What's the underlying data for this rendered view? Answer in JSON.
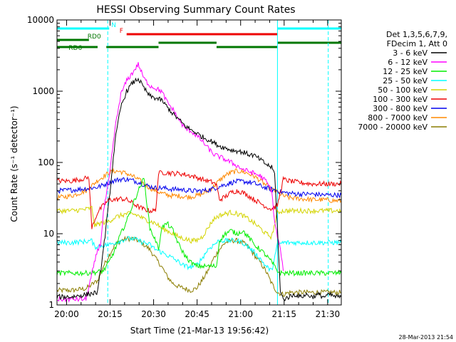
{
  "chart_data": {
    "type": "line",
    "title": "HESSI Observing Summary Count Rates",
    "xlabel": "Start Time (21-Mar-13 19:56:42)",
    "ylabel": "Count Rate (s⁻¹ detector⁻¹)",
    "y_scale": "log",
    "ylim": [
      1,
      10000
    ],
    "xlim_minutes_after_start": [
      0,
      98
    ],
    "x_tick_labels": [
      "20:00",
      "20:15",
      "20:30",
      "20:45",
      "21:00",
      "21:15",
      "21:30"
    ],
    "y_tick_labels": [
      "1",
      "10",
      "100",
      "1000",
      "10000"
    ],
    "footer_timestamp": "28-Mar-2013 21:54",
    "legend": {
      "placement": "top-right",
      "header_lines": [
        "Det 1,3,5,6,7,9,",
        "FDecim 1, Att 0"
      ],
      "entries": [
        {
          "label": "3 - 6 keV",
          "color": "#000000"
        },
        {
          "label": "6 - 12 keV",
          "color": "#ff00ff"
        },
        {
          "label": "12 - 25 keV",
          "color": "#00ee00"
        },
        {
          "label": "25 - 50 keV",
          "color": "#00ffff"
        },
        {
          "label": "50 - 100 keV",
          "color": "#d4d400"
        },
        {
          "label": "100 - 300 keV",
          "color": "#ee0000"
        },
        {
          "label": "300 - 800 keV",
          "color": "#0000ee"
        },
        {
          "label": "800 - 7000 keV",
          "color": "#ff8800"
        },
        {
          "label": "7000 - 20000 keV",
          "color": "#8b7d00"
        }
      ]
    },
    "flag_bars": [
      {
        "label": "N",
        "color": "#00ffff",
        "segments": [
          [
            0,
            18
          ],
          [
            76,
            98
          ]
        ]
      },
      {
        "label": "F",
        "color": "#ee0000",
        "segments": [
          [
            24,
            76
          ]
        ]
      },
      {
        "label": "RD0",
        "color": "#007700",
        "segments": [
          [
            0,
            11
          ]
        ]
      },
      {
        "label": "",
        "color": "#007700",
        "segments": [
          [
            35,
            55
          ],
          [
            76,
            98
          ]
        ]
      },
      {
        "label": "RD6",
        "color": "#007700",
        "segments": [
          [
            0,
            14
          ],
          [
            17,
            35
          ],
          [
            55,
            76
          ]
        ]
      }
    ],
    "vertical_markers": [
      {
        "x": 0,
        "color": "#00ffff",
        "style": "solid"
      },
      {
        "x": 17.5,
        "color": "#00ffff",
        "style": "dashed"
      },
      {
        "x": 76,
        "color": "#00ffff",
        "style": "solid"
      },
      {
        "x": 93.5,
        "color": "#00ffff",
        "style": "dashed"
      }
    ],
    "series": [
      {
        "name": "3 - 6 keV",
        "color": "#000000",
        "x": [
          0,
          5,
          10,
          14,
          16,
          18,
          20,
          22,
          24,
          26,
          28,
          30,
          32,
          34,
          36,
          38,
          40,
          42,
          44,
          46,
          48,
          50,
          52,
          54,
          56,
          58,
          60,
          62,
          64,
          66,
          68,
          70,
          72,
          74,
          75,
          76,
          77,
          78,
          80,
          82,
          84,
          86,
          88,
          90,
          92,
          94,
          96,
          98
        ],
        "y": [
          1.3,
          1.3,
          1.4,
          1.5,
          6,
          30,
          200,
          600,
          1000,
          1300,
          1500,
          1100,
          850,
          800,
          750,
          600,
          480,
          400,
          330,
          290,
          260,
          230,
          210,
          190,
          170,
          160,
          150,
          145,
          140,
          130,
          125,
          110,
          95,
          85,
          70,
          12,
          1.5,
          1.2,
          1.3,
          1.4,
          1.3,
          1.4,
          1.3,
          1.4,
          1.3,
          1.4,
          1.3,
          1.3
        ]
      },
      {
        "name": "6 - 12 keV",
        "color": "#ff00ff",
        "x": [
          0,
          5,
          10,
          14,
          15,
          16,
          18,
          20,
          22,
          24,
          26,
          28,
          30,
          32,
          34,
          36,
          38,
          40,
          42,
          44,
          46,
          48,
          50,
          52,
          54,
          56,
          58,
          60,
          62,
          64,
          66,
          68,
          70,
          72,
          74,
          75,
          76,
          77,
          78
        ],
        "y": [
          1.2,
          1.2,
          1.2,
          6,
          7,
          20,
          60,
          300,
          900,
          1400,
          1800,
          2400,
          1500,
          1200,
          1100,
          1000,
          700,
          550,
          400,
          300,
          280,
          240,
          200,
          160,
          130,
          120,
          110,
          100,
          90,
          80,
          75,
          70,
          65,
          55,
          40,
          15,
          9,
          6,
          3
        ]
      },
      {
        "name": "12 - 25 keV",
        "color": "#00ee00",
        "x": [
          0,
          5,
          10,
          14,
          16,
          18,
          20,
          22,
          24,
          26,
          28,
          30,
          32,
          34,
          35,
          36,
          38,
          40,
          42,
          44,
          46,
          48,
          50,
          52,
          54,
          55,
          56,
          58,
          60,
          62,
          64,
          66,
          68,
          70,
          72,
          74,
          76,
          77,
          80,
          85,
          90,
          95,
          98
        ],
        "y": [
          2.8,
          2.8,
          2.8,
          2.9,
          3,
          4,
          6,
          10,
          15,
          25,
          40,
          60,
          12,
          8,
          6,
          12,
          14,
          11,
          7,
          5,
          4,
          3.5,
          3.5,
          3.5,
          3.5,
          3.5,
          8,
          10,
          11,
          10,
          11,
          9,
          7,
          6,
          5,
          4,
          3,
          2.8,
          2.8,
          2.8,
          2.8,
          2.8,
          2.8
        ]
      },
      {
        "name": "25 - 50 keV",
        "color": "#00ffff",
        "x": [
          0,
          5,
          10,
          12,
          13,
          15,
          18,
          20,
          22,
          24,
          26,
          28,
          30,
          32,
          34,
          36,
          38,
          40,
          42,
          44,
          46,
          48,
          50,
          52,
          54,
          56,
          58,
          60,
          62,
          64,
          66,
          68,
          70,
          72,
          74,
          76,
          78,
          80,
          84,
          88,
          92,
          96,
          98
        ],
        "y": [
          7.5,
          7.5,
          7.8,
          8,
          6.5,
          6.8,
          7,
          7.5,
          8,
          8.5,
          8.5,
          8,
          7.5,
          7,
          6,
          5.5,
          5,
          4.5,
          4,
          3.5,
          3.4,
          3.6,
          4.5,
          6,
          7,
          8,
          8,
          8,
          8,
          7.5,
          6.5,
          5.5,
          4.5,
          3.5,
          3,
          7,
          7.5,
          7.5,
          7.5,
          7.5,
          7.5,
          7.5,
          7.5
        ]
      },
      {
        "name": "50 - 100 keV",
        "color": "#d4d400",
        "x": [
          0,
          5,
          10,
          12,
          13,
          15,
          18,
          20,
          22,
          24,
          26,
          28,
          30,
          32,
          34,
          36,
          38,
          40,
          42,
          44,
          46,
          48,
          50,
          52,
          54,
          56,
          58,
          60,
          62,
          64,
          66,
          68,
          70,
          72,
          74,
          76,
          78,
          80,
          84,
          88,
          92,
          96,
          98
        ],
        "y": [
          21,
          21,
          22,
          23,
          13,
          14,
          15,
          17,
          18,
          19,
          19,
          18,
          16,
          15,
          14,
          12,
          11,
          10,
          9,
          8.5,
          8,
          8,
          9,
          12,
          16,
          18,
          19,
          20,
          19,
          18,
          16,
          14,
          12,
          10,
          9,
          20,
          21,
          21,
          21,
          21,
          21,
          21,
          21
        ]
      },
      {
        "name": "100 - 300 keV",
        "color": "#ee0000",
        "x": [
          0,
          5,
          10,
          11,
          12,
          14,
          16,
          18,
          20,
          22,
          24,
          26,
          28,
          30,
          32,
          34,
          35,
          36,
          38,
          40,
          42,
          44,
          46,
          48,
          50,
          52,
          54,
          55,
          56,
          58,
          60,
          62,
          64,
          66,
          68,
          70,
          72,
          74,
          76,
          78,
          80,
          84,
          88,
          92,
          96,
          98
        ],
        "y": [
          55,
          55,
          60,
          62,
          12,
          20,
          25,
          30,
          30,
          31,
          30,
          27,
          24,
          22,
          21,
          21,
          70,
          72,
          72,
          70,
          70,
          68,
          65,
          62,
          58,
          55,
          52,
          48,
          30,
          33,
          38,
          40,
          38,
          34,
          30,
          27,
          24,
          22,
          25,
          58,
          55,
          52,
          50,
          50,
          50,
          50
        ]
      },
      {
        "name": "300 - 800 keV",
        "color": "#0000ee",
        "x": [
          0,
          5,
          10,
          14,
          18,
          20,
          22,
          24,
          26,
          28,
          30,
          32,
          34,
          36,
          38,
          40,
          42,
          44,
          46,
          48,
          50,
          52,
          54,
          56,
          58,
          60,
          62,
          64,
          66,
          68,
          70,
          72,
          74,
          76,
          78,
          80,
          84,
          88,
          92,
          96,
          98
        ],
        "y": [
          40,
          41,
          43,
          45,
          52,
          56,
          58,
          58,
          56,
          53,
          49,
          46,
          44,
          44,
          43,
          42,
          42,
          41,
          40,
          40,
          40,
          41,
          43,
          46,
          49,
          52,
          54,
          54,
          53,
          51,
          47,
          44,
          42,
          40,
          38,
          37,
          36,
          36,
          35,
          35,
          35
        ]
      },
      {
        "name": "800 - 7000 keV",
        "color": "#ff8800",
        "x": [
          0,
          5,
          10,
          14,
          18,
          20,
          22,
          24,
          26,
          28,
          30,
          32,
          34,
          36,
          38,
          40,
          42,
          44,
          46,
          48,
          50,
          52,
          54,
          56,
          58,
          60,
          62,
          64,
          66,
          68,
          70,
          72,
          74,
          76,
          78,
          80,
          84,
          88,
          92,
          96,
          98
        ],
        "y": [
          32,
          34,
          40,
          56,
          72,
          76,
          74,
          70,
          64,
          58,
          50,
          44,
          40,
          37,
          35,
          34,
          34,
          33,
          33,
          34,
          36,
          40,
          46,
          56,
          66,
          72,
          76,
          74,
          70,
          64,
          56,
          48,
          42,
          38,
          34,
          32,
          31,
          30,
          30,
          29,
          29
        ]
      },
      {
        "name": "7000 - 20000 keV",
        "color": "#8b7d00",
        "x": [
          0,
          5,
          10,
          14,
          16,
          18,
          20,
          22,
          24,
          26,
          28,
          30,
          32,
          34,
          36,
          38,
          40,
          42,
          44,
          46,
          48,
          50,
          52,
          54,
          56,
          58,
          60,
          62,
          64,
          66,
          68,
          70,
          72,
          74,
          76,
          78,
          80,
          85,
          90,
          95,
          98
        ],
        "y": [
          1.6,
          1.6,
          1.7,
          2.2,
          3.5,
          5,
          7,
          8,
          8.5,
          8.5,
          8,
          7,
          6,
          4.5,
          3.5,
          2.5,
          2,
          1.8,
          1.7,
          1.6,
          1.7,
          2.2,
          3,
          4.5,
          6,
          7.5,
          8,
          8,
          7.5,
          6.5,
          5,
          4,
          3,
          2,
          1.5,
          1.4,
          1.5,
          1.5,
          1.5,
          1.5,
          1.5
        ]
      }
    ]
  }
}
